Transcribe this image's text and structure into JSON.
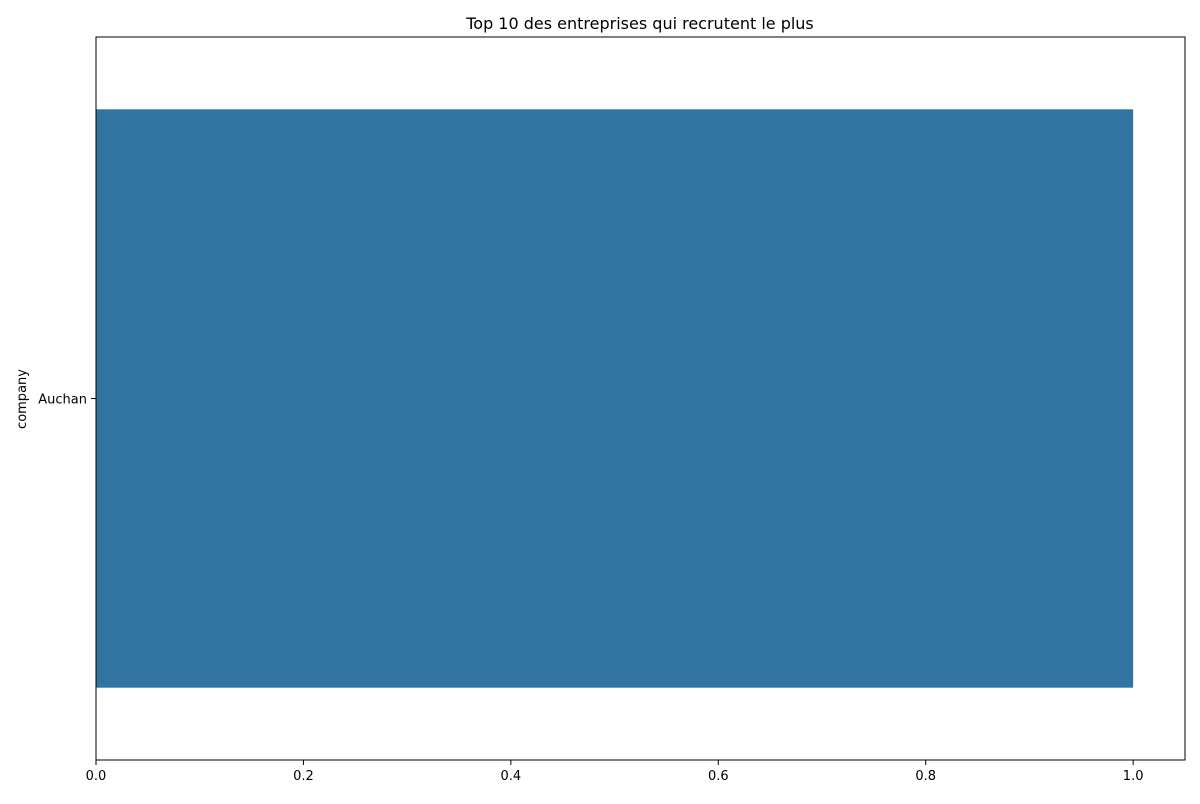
{
  "chart_data": {
    "type": "bar",
    "orientation": "horizontal",
    "title": "Top 10 des entreprises qui recrutent le plus",
    "xlabel": "",
    "ylabel": "company",
    "categories": [
      "Auchan"
    ],
    "values": [
      1
    ],
    "xlim": [
      0,
      1.05
    ],
    "xticks": [
      "0.0",
      "0.2",
      "0.4",
      "0.6",
      "0.8",
      "1.0"
    ],
    "bar_color": "#3274a1",
    "grid": false,
    "legend": "none"
  }
}
